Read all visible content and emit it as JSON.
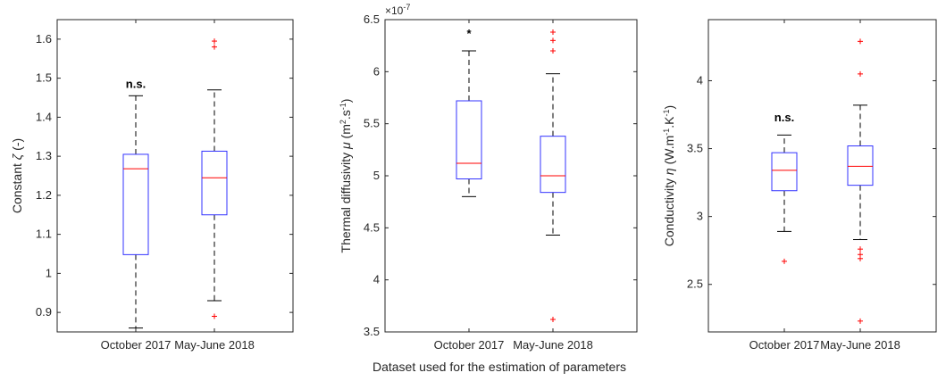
{
  "figure": {
    "shared_xlabel": "Dataset used for the estimation of parameters"
  },
  "chart_data": [
    {
      "type": "box",
      "categories": [
        "October 2017",
        "May-June 2018"
      ],
      "ylabel": "Constant ζ (-)",
      "ylabel_parts": {
        "pre": "Constant ",
        "sym": "ζ",
        "post": " (-)"
      },
      "ylim": [
        0.85,
        1.65
      ],
      "yticks": [
        0.9,
        1,
        1.1,
        1.2,
        1.3,
        1.4,
        1.5,
        1.6
      ],
      "yticklabels": [
        "0.9",
        "1",
        "1.1",
        "1.2",
        "1.3",
        "1.4",
        "1.5",
        "1.6"
      ],
      "exponent_label": "",
      "annotation": {
        "text": "n.s.",
        "category_index": 0,
        "y": 1.475
      },
      "boxes": [
        {
          "category": "October 2017",
          "whisker_low": 0.86,
          "q1": 1.048,
          "median": 1.268,
          "q3": 1.305,
          "whisker_high": 1.455,
          "outliers": []
        },
        {
          "category": "May-June 2018",
          "whisker_low": 0.93,
          "q1": 1.15,
          "median": 1.245,
          "q3": 1.313,
          "whisker_high": 1.47,
          "outliers": [
            0.89,
            1.58,
            1.595
          ]
        }
      ]
    },
    {
      "type": "box",
      "categories": [
        "October 2017",
        "May-June 2018"
      ],
      "ylabel": "Thermal diffusivity μ (m².s⁻¹)",
      "ylabel_parts": {
        "pre": "Thermal diffusivity ",
        "sym": "μ",
        "post": " (m",
        "sup1": "2",
        "mid": ".s",
        "sup2": "-1",
        "end": ")"
      },
      "ylim": [
        3.5,
        6.5
      ],
      "yticks": [
        3.5,
        4,
        4.5,
        5,
        5.5,
        6,
        6.5
      ],
      "yticklabels": [
        "3.5",
        "4",
        "4.5",
        "5",
        "5.5",
        "6",
        "6.5"
      ],
      "exponent_label": {
        "base": "×10",
        "power": "-7"
      },
      "annotation": {
        "text": "*",
        "category_index": 0,
        "y": 6.33
      },
      "boxes": [
        {
          "category": "October 2017",
          "whisker_low": 4.8,
          "q1": 4.97,
          "median": 5.12,
          "q3": 5.72,
          "whisker_high": 6.2,
          "outliers": []
        },
        {
          "category": "May-June 2018",
          "whisker_low": 4.43,
          "q1": 4.84,
          "median": 5.0,
          "q3": 5.38,
          "whisker_high": 5.98,
          "outliers": [
            3.62,
            6.2,
            6.3,
            6.38
          ]
        }
      ]
    },
    {
      "type": "box",
      "categories": [
        "October 2017",
        "May-June 2018"
      ],
      "ylabel": "Conductivity η (W.m⁻¹.K⁻¹)",
      "ylabel_parts": {
        "pre": "Conductivity ",
        "sym": "η",
        "post": " (W.m",
        "sup1": "-1",
        "mid": ".K",
        "sup2": "-1",
        "end": ")"
      },
      "ylim": [
        2.15,
        4.45
      ],
      "yticks": [
        2.5,
        3,
        3.5,
        4
      ],
      "yticklabels": [
        "2.5",
        "3",
        "3.5",
        "4"
      ],
      "exponent_label": "",
      "annotation": {
        "text": "n.s.",
        "category_index": 0,
        "y": 3.7
      },
      "boxes": [
        {
          "category": "October 2017",
          "whisker_low": 2.89,
          "q1": 3.19,
          "median": 3.34,
          "q3": 3.47,
          "whisker_high": 3.6,
          "outliers": [
            2.67
          ]
        },
        {
          "category": "May-June 2018",
          "whisker_low": 2.83,
          "q1": 3.23,
          "median": 3.37,
          "q3": 3.52,
          "whisker_high": 3.82,
          "outliers": [
            2.23,
            2.69,
            2.72,
            2.76,
            4.05,
            4.29
          ]
        }
      ]
    }
  ],
  "style": {
    "box_color": "#3333ff",
    "median_color": "#ff0000",
    "whisker_color": "#000000",
    "outlier_color": "#ff0000",
    "axis_color": "#262626"
  }
}
